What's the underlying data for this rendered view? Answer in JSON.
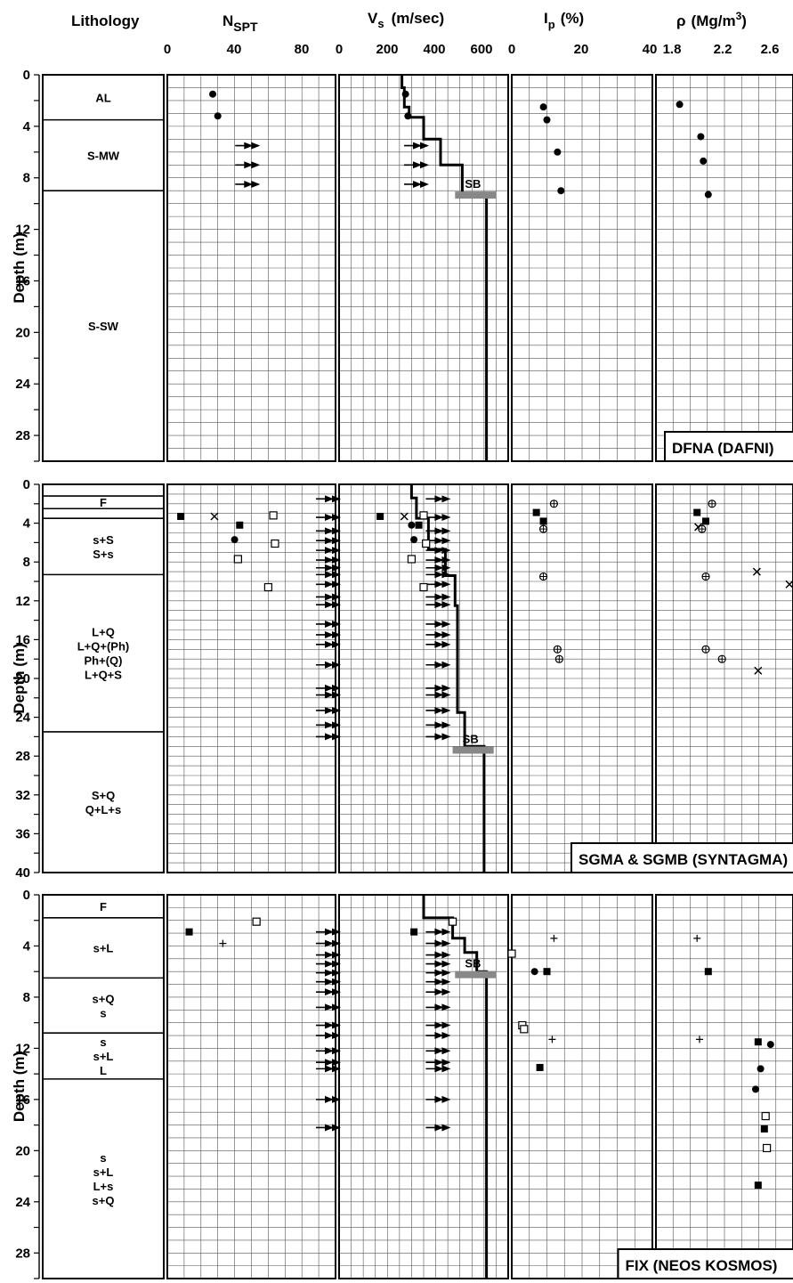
{
  "headers": {
    "lithology": "Lithology",
    "nspt_main": "N",
    "nspt_sub": "SPT",
    "vs_main": "V",
    "vs_sub": "s",
    "vs_unit": "(m/sec)",
    "ip_main": "I",
    "ip_sub": "p",
    "ip_unit": "(%)",
    "rho_main": "ρ",
    "rho_unit": "(Mg/m",
    "rho_sup": "3",
    "rho_close": ")"
  },
  "top_ticks": {
    "nspt": [
      "0",
      "40",
      "80"
    ],
    "vs": [
      "0",
      "200",
      "400",
      "600"
    ],
    "ip": [
      "0",
      "20",
      "40"
    ],
    "rho": [
      "1.8",
      "2.2",
      "2.6"
    ]
  },
  "y_axis_label": "Depth (m)",
  "sb_label": "SB",
  "colors": {
    "line": "#000000",
    "grid": "#555555",
    "sb_bar": "#888888",
    "background": "#ffffff"
  },
  "chart_data": [
    {
      "type": "scatter",
      "site": "DFNA (DAFNI)",
      "ylabel": "Depth (m)",
      "ylim": [
        0,
        30
      ],
      "yticks": [
        0,
        4,
        8,
        12,
        16,
        20,
        24,
        28
      ],
      "lithology": [
        {
          "top": 0,
          "bottom": 3.5,
          "labels": [
            "AL"
          ]
        },
        {
          "top": 3.5,
          "bottom": 9,
          "labels": [
            "S-MW"
          ]
        },
        {
          "top": 9,
          "bottom": 30,
          "labels": [
            "S-SW"
          ]
        }
      ],
      "nspt": {
        "xlim": [
          0,
          100
        ],
        "points": [
          {
            "x": 27,
            "y": 1.5,
            "m": "dot"
          },
          {
            "x": 30,
            "y": 3.2,
            "m": "dot"
          }
        ],
        "arrows": [
          {
            "x": 52,
            "y": 5.5
          },
          {
            "x": 52,
            "y": 7
          },
          {
            "x": 52,
            "y": 8.5
          }
        ]
      },
      "vs": {
        "xlim": [
          0,
          700
        ],
        "profile": [
          [
            260,
            0
          ],
          [
            260,
            1
          ],
          [
            270,
            1
          ],
          [
            270,
            2.5
          ],
          [
            290,
            2.5
          ],
          [
            290,
            3.3
          ],
          [
            350,
            3.3
          ],
          [
            350,
            5
          ],
          [
            420,
            5
          ],
          [
            420,
            7
          ],
          [
            510,
            7
          ],
          [
            510,
            9.2
          ],
          [
            610,
            9.2
          ],
          [
            610,
            30
          ]
        ],
        "points": [
          {
            "x": 275,
            "y": 1.5,
            "m": "dot"
          },
          {
            "x": 285,
            "y": 3.2,
            "m": "dot"
          }
        ],
        "arrows": [
          {
            "x": 350,
            "y": 5.5
          },
          {
            "x": 350,
            "y": 7
          },
          {
            "x": 350,
            "y": 8.5
          }
        ],
        "sb": {
          "depth": 9.2,
          "x1": 480,
          "x2": 650
        }
      },
      "ip": {
        "xlim": [
          0,
          40
        ],
        "points": [
          {
            "x": 9,
            "y": 2.5,
            "m": "dot"
          },
          {
            "x": 10,
            "y": 3.5,
            "m": "dot"
          },
          {
            "x": 13,
            "y": 6,
            "m": "dot"
          },
          {
            "x": 14,
            "y": 9,
            "m": "dot"
          }
        ]
      },
      "rho": {
        "xlim": [
          1.8,
          2.9
        ],
        "points": [
          {
            "x": 1.99,
            "y": 2.3,
            "m": "dot"
          },
          {
            "x": 2.16,
            "y": 4.8,
            "m": "dot"
          },
          {
            "x": 2.18,
            "y": 6.7,
            "m": "dot"
          },
          {
            "x": 2.22,
            "y": 9.3,
            "m": "dot"
          }
        ]
      }
    },
    {
      "type": "scatter",
      "site": "SGMA & SGMB (SYNTAGMA)",
      "ylabel": "Depth (m)",
      "ylim": [
        0,
        40
      ],
      "yticks": [
        0,
        4,
        8,
        12,
        16,
        20,
        24,
        28,
        32,
        36,
        40
      ],
      "lithology": [
        {
          "top": 0,
          "bottom": 1.2,
          "labels": []
        },
        {
          "top": 1.2,
          "bottom": 2.5,
          "labels": [
            "F"
          ]
        },
        {
          "top": 2.5,
          "bottom": 3.5,
          "labels": []
        },
        {
          "top": 3.5,
          "bottom": 9.3,
          "labels": [
            "s+S",
            "S+s"
          ]
        },
        {
          "top": 9.3,
          "bottom": 25.5,
          "labels": [
            "L+Q",
            "L+Q+(Ph)",
            "Ph+(Q)",
            "L+Q+S"
          ]
        },
        {
          "top": 25.5,
          "bottom": 40,
          "labels": [
            "S+Q",
            "Q+L+s"
          ]
        }
      ],
      "nspt": {
        "xlim": [
          0,
          100
        ],
        "points": [
          {
            "x": 8,
            "y": 3.3,
            "m": "sq"
          },
          {
            "x": 28,
            "y": 3.3,
            "m": "x"
          },
          {
            "x": 43,
            "y": 4.2,
            "m": "sq"
          },
          {
            "x": 40,
            "y": 5.7,
            "m": "dot"
          },
          {
            "x": 63,
            "y": 3.2,
            "m": "osq"
          },
          {
            "x": 64,
            "y": 6.1,
            "m": "osq"
          },
          {
            "x": 42,
            "y": 7.7,
            "m": "osq"
          },
          {
            "x": 60,
            "y": 10.6,
            "m": "osq"
          }
        ],
        "arrows": [
          {
            "x": 100,
            "y": 1.5
          },
          {
            "x": 100,
            "y": 3.4
          },
          {
            "x": 100,
            "y": 4.8
          },
          {
            "x": 100,
            "y": 5.8
          },
          {
            "x": 100,
            "y": 6.8
          },
          {
            "x": 100,
            "y": 7.8
          },
          {
            "x": 100,
            "y": 8.6
          },
          {
            "x": 100,
            "y": 9.3
          },
          {
            "x": 100,
            "y": 10.3
          },
          {
            "x": 100,
            "y": 11.6
          },
          {
            "x": 100,
            "y": 12.4
          },
          {
            "x": 100,
            "y": 14.4
          },
          {
            "x": 100,
            "y": 15.5
          },
          {
            "x": 100,
            "y": 16.5
          },
          {
            "x": 100,
            "y": 18.6
          },
          {
            "x": 100,
            "y": 21
          },
          {
            "x": 100,
            "y": 21.7
          },
          {
            "x": 100,
            "y": 23.3
          },
          {
            "x": 100,
            "y": 24.8
          },
          {
            "x": 100,
            "y": 26
          }
        ]
      },
      "vs": {
        "xlim": [
          0,
          700
        ],
        "profile": [
          [
            300,
            0
          ],
          [
            300,
            1.4
          ],
          [
            320,
            1.4
          ],
          [
            320,
            3.5
          ],
          [
            370,
            3.5
          ],
          [
            370,
            6.7
          ],
          [
            440,
            6.7
          ],
          [
            440,
            9.4
          ],
          [
            480,
            9.4
          ],
          [
            480,
            12.5
          ],
          [
            490,
            12.5
          ],
          [
            490,
            23.5
          ],
          [
            520,
            23.5
          ],
          [
            520,
            27
          ],
          [
            600,
            27
          ],
          [
            600,
            40
          ]
        ],
        "points": [
          {
            "x": 170,
            "y": 3.3,
            "m": "sq"
          },
          {
            "x": 270,
            "y": 3.3,
            "m": "x"
          },
          {
            "x": 350,
            "y": 3.2,
            "m": "osq"
          },
          {
            "x": 330,
            "y": 4.2,
            "m": "sq"
          },
          {
            "x": 300,
            "y": 4.2,
            "m": "dot"
          },
          {
            "x": 310,
            "y": 5.7,
            "m": "dot"
          },
          {
            "x": 360,
            "y": 6.1,
            "m": "osq"
          },
          {
            "x": 300,
            "y": 7.7,
            "m": "osq"
          },
          {
            "x": 350,
            "y": 10.6,
            "m": "osq"
          }
        ],
        "arrows": [
          {
            "x": 440,
            "y": 1.5
          },
          {
            "x": 440,
            "y": 3.4
          },
          {
            "x": 440,
            "y": 4.8
          },
          {
            "x": 440,
            "y": 5.8
          },
          {
            "x": 440,
            "y": 6.8
          },
          {
            "x": 440,
            "y": 7.8
          },
          {
            "x": 440,
            "y": 8.6
          },
          {
            "x": 440,
            "y": 9.3
          },
          {
            "x": 440,
            "y": 10.3
          },
          {
            "x": 440,
            "y": 11.6
          },
          {
            "x": 440,
            "y": 12.4
          },
          {
            "x": 440,
            "y": 14.4
          },
          {
            "x": 440,
            "y": 15.5
          },
          {
            "x": 440,
            "y": 16.5
          },
          {
            "x": 440,
            "y": 18.6
          },
          {
            "x": 440,
            "y": 21
          },
          {
            "x": 440,
            "y": 21.7
          },
          {
            "x": 440,
            "y": 23.3
          },
          {
            "x": 440,
            "y": 24.8
          },
          {
            "x": 440,
            "y": 26
          }
        ],
        "sb": {
          "depth": 27.2,
          "x1": 470,
          "x2": 640
        }
      },
      "ip": {
        "xlim": [
          0,
          40
        ],
        "points": [
          {
            "x": 7,
            "y": 2.9,
            "m": "sq"
          },
          {
            "x": 9,
            "y": 3.8,
            "m": "sq"
          },
          {
            "x": 12,
            "y": 2,
            "m": "oplus"
          },
          {
            "x": 9,
            "y": 4.6,
            "m": "oplus"
          },
          {
            "x": 9,
            "y": 9.5,
            "m": "oplus"
          },
          {
            "x": 13,
            "y": 17,
            "m": "oplus"
          },
          {
            "x": 13.5,
            "y": 18,
            "m": "oplus"
          }
        ]
      },
      "rho": {
        "xlim": [
          1.8,
          2.9
        ],
        "points": [
          {
            "x": 2.13,
            "y": 2.9,
            "m": "sq"
          },
          {
            "x": 2.2,
            "y": 3.8,
            "m": "sq"
          },
          {
            "x": 2.14,
            "y": 4.4,
            "m": "x"
          },
          {
            "x": 2.25,
            "y": 2,
            "m": "oplus"
          },
          {
            "x": 2.17,
            "y": 4.6,
            "m": "oplus"
          },
          {
            "x": 2.2,
            "y": 9.5,
            "m": "oplus"
          },
          {
            "x": 2.2,
            "y": 17,
            "m": "oplus"
          },
          {
            "x": 2.33,
            "y": 18,
            "m": "oplus"
          },
          {
            "x": 2.61,
            "y": 9,
            "m": "x"
          },
          {
            "x": 2.88,
            "y": 10.3,
            "m": "x"
          },
          {
            "x": 2.62,
            "y": 19.2,
            "m": "x"
          }
        ]
      }
    },
    {
      "type": "scatter",
      "site": "FIX (NEOS KOSMOS)",
      "ylabel": "Depth (m)",
      "ylim": [
        0,
        30
      ],
      "yticks": [
        0,
        4,
        8,
        12,
        16,
        20,
        24,
        28
      ],
      "lithology": [
        {
          "top": 0,
          "bottom": 1.8,
          "labels": [
            "F"
          ]
        },
        {
          "top": 1.8,
          "bottom": 6.5,
          "labels": [
            "s+L"
          ]
        },
        {
          "top": 6.5,
          "bottom": 10.8,
          "labels": [
            "s+Q",
            "s"
          ]
        },
        {
          "top": 10.8,
          "bottom": 14.4,
          "labels": [
            "s",
            "s+L",
            "L"
          ]
        },
        {
          "top": 14.4,
          "bottom": 30,
          "labels": [
            "s",
            "s+L",
            "L+s",
            "s+Q"
          ]
        }
      ],
      "nspt": {
        "xlim": [
          0,
          100
        ],
        "points": [
          {
            "x": 13,
            "y": 2.9,
            "m": "sq"
          },
          {
            "x": 53,
            "y": 2.1,
            "m": "osq"
          },
          {
            "x": 33,
            "y": 3.8,
            "m": "plus"
          }
        ],
        "arrows": [
          {
            "x": 100,
            "y": 2.9
          },
          {
            "x": 100,
            "y": 3.8
          },
          {
            "x": 100,
            "y": 4.7
          },
          {
            "x": 100,
            "y": 5.4
          },
          {
            "x": 100,
            "y": 6.1
          },
          {
            "x": 100,
            "y": 6.8
          },
          {
            "x": 100,
            "y": 7.6
          },
          {
            "x": 100,
            "y": 8.8
          },
          {
            "x": 100,
            "y": 10.2
          },
          {
            "x": 100,
            "y": 11
          },
          {
            "x": 100,
            "y": 12.2
          },
          {
            "x": 100,
            "y": 13.1
          },
          {
            "x": 100,
            "y": 13.6
          },
          {
            "x": 100,
            "y": 16
          },
          {
            "x": 100,
            "y": 18.2
          }
        ]
      },
      "vs": {
        "xlim": [
          0,
          700
        ],
        "profile": [
          [
            350,
            0
          ],
          [
            350,
            1.8
          ],
          [
            470,
            1.8
          ],
          [
            470,
            3.4
          ],
          [
            520,
            3.4
          ],
          [
            520,
            4.5
          ],
          [
            570,
            4.5
          ],
          [
            570,
            6
          ],
          [
            610,
            6
          ],
          [
            610,
            30
          ]
        ],
        "points": [
          {
            "x": 310,
            "y": 2.9,
            "m": "sq"
          },
          {
            "x": 470,
            "y": 2.1,
            "m": "osq"
          },
          {
            "x": 400,
            "y": 3.8,
            "m": "plus"
          }
        ],
        "arrows": [
          {
            "x": 440,
            "y": 2.9
          },
          {
            "x": 440,
            "y": 3.8
          },
          {
            "x": 440,
            "y": 4.7
          },
          {
            "x": 440,
            "y": 5.4
          },
          {
            "x": 440,
            "y": 6.1
          },
          {
            "x": 440,
            "y": 6.8
          },
          {
            "x": 440,
            "y": 7.6
          },
          {
            "x": 440,
            "y": 8.8
          },
          {
            "x": 440,
            "y": 10.2
          },
          {
            "x": 440,
            "y": 11
          },
          {
            "x": 440,
            "y": 12.2
          },
          {
            "x": 440,
            "y": 13.1
          },
          {
            "x": 440,
            "y": 13.6
          },
          {
            "x": 440,
            "y": 16
          },
          {
            "x": 440,
            "y": 18.2
          }
        ],
        "sb": {
          "depth": 6.1,
          "x1": 480,
          "x2": 650
        }
      },
      "ip": {
        "xlim": [
          0,
          40
        ],
        "points": [
          {
            "x": 0,
            "y": 4.6,
            "m": "osq"
          },
          {
            "x": 3,
            "y": 10.2,
            "m": "osq"
          },
          {
            "x": 3.5,
            "y": 10.5,
            "m": "osq"
          },
          {
            "x": 12,
            "y": 3.4,
            "m": "plus"
          },
          {
            "x": 11.5,
            "y": 11.3,
            "m": "plus"
          },
          {
            "x": 6.5,
            "y": 6,
            "m": "dot"
          },
          {
            "x": 10,
            "y": 6,
            "m": "sq"
          },
          {
            "x": 8,
            "y": 13.5,
            "m": "sq"
          }
        ]
      },
      "rho": {
        "xlim": [
          1.8,
          2.9
        ],
        "points": [
          {
            "x": 2.13,
            "y": 3.4,
            "m": "plus"
          },
          {
            "x": 2.15,
            "y": 11.3,
            "m": "plus"
          },
          {
            "x": 2.22,
            "y": 6,
            "m": "sq"
          },
          {
            "x": 2.62,
            "y": 11.5,
            "m": "sq"
          },
          {
            "x": 2.67,
            "y": 18.3,
            "m": "sq"
          },
          {
            "x": 2.62,
            "y": 22.7,
            "m": "sq"
          },
          {
            "x": 2.72,
            "y": 11.7,
            "m": "dot"
          },
          {
            "x": 2.64,
            "y": 13.6,
            "m": "dot"
          },
          {
            "x": 2.6,
            "y": 15.2,
            "m": "dot"
          },
          {
            "x": 2.68,
            "y": 17.3,
            "m": "osq"
          },
          {
            "x": 2.69,
            "y": 19.8,
            "m": "osq"
          }
        ]
      }
    }
  ]
}
